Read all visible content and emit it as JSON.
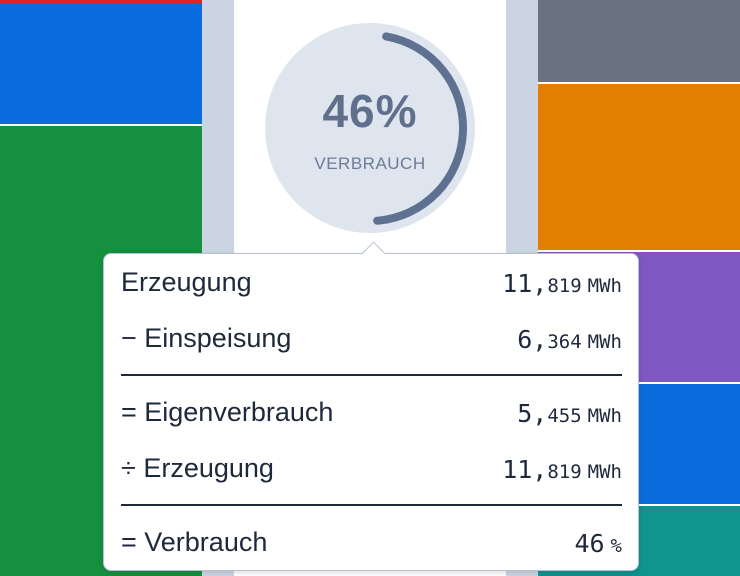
{
  "colors": {
    "red": "#dc2626",
    "blue": "#0a6cdc",
    "green": "#15903f",
    "gray": "#6b7280",
    "orange": "#e07f00",
    "purple": "#7e57c2",
    "teal": "#0f9490",
    "gauge_fill": "#dfe5ee",
    "gauge_arc": "#5f7191"
  },
  "gauge": {
    "value_text": "46%",
    "label": "VERBRAUCH",
    "fraction": 0.46
  },
  "tooltip": {
    "rows": [
      {
        "label": "Erzeugung",
        "value_big": "11,",
        "value_small": "819",
        "unit": "MWh"
      },
      {
        "label": "− Einspeisung",
        "value_big": "6,",
        "value_small": "364",
        "unit": "MWh"
      },
      {
        "label": "= Eigenverbrauch",
        "value_big": "5,",
        "value_small": "455",
        "unit": "MWh"
      },
      {
        "label": "÷ Erzeugung",
        "value_big": "11,",
        "value_small": "819",
        "unit": "MWh"
      },
      {
        "label": "= Verbrauch",
        "value_big": "46",
        "value_small": "",
        "unit": "%"
      }
    ]
  }
}
